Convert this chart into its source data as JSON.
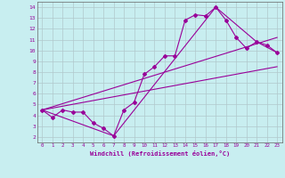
{
  "xlabel": "Windchill (Refroidissement éolien,°C)",
  "bg_color": "#c8eef0",
  "line_color": "#990099",
  "marker_color": "#990099",
  "xlim": [
    -0.5,
    23.5
  ],
  "ylim": [
    1.5,
    14.5
  ],
  "xticks": [
    0,
    1,
    2,
    3,
    4,
    5,
    6,
    7,
    8,
    9,
    10,
    11,
    12,
    13,
    14,
    15,
    16,
    17,
    18,
    19,
    20,
    21,
    22,
    23
  ],
  "yticks": [
    2,
    3,
    4,
    5,
    6,
    7,
    8,
    9,
    10,
    11,
    12,
    13,
    14
  ],
  "grid_color": "#b0c8cc",
  "series1_x": [
    0,
    1,
    2,
    3,
    4,
    5,
    6,
    7,
    8,
    9,
    10,
    11,
    12,
    13,
    14,
    15,
    16,
    17,
    18,
    19,
    20,
    21,
    22,
    23
  ],
  "series1_y": [
    4.5,
    3.8,
    4.5,
    4.3,
    4.3,
    3.3,
    2.8,
    2.1,
    4.5,
    5.2,
    7.8,
    8.5,
    9.5,
    9.5,
    12.8,
    13.3,
    13.2,
    14.0,
    12.8,
    11.2,
    10.2,
    10.8,
    10.5,
    9.8
  ],
  "series2_x": [
    0,
    23
  ],
  "series2_y": [
    4.5,
    8.5
  ],
  "series3_x": [
    0,
    23
  ],
  "series3_y": [
    4.5,
    11.2
  ],
  "series4_x": [
    0,
    7,
    17,
    21,
    23
  ],
  "series4_y": [
    4.5,
    2.1,
    14.0,
    10.8,
    9.8
  ]
}
